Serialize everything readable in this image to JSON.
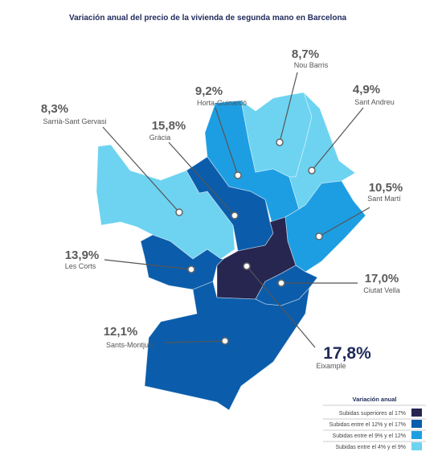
{
  "title": "Variación anual del precio de la vivienda de segunda mano en Barcelona",
  "districts": [
    {
      "name": "Nou Barris",
      "label": "8,7%",
      "color": "#6dd3f1"
    },
    {
      "name": "Horta-Guinardó",
      "label": "9,2%",
      "color": "#1e9ee2"
    },
    {
      "name": "Sant Andreu",
      "label": "4,9%",
      "color": "#6dd3f1"
    },
    {
      "name": "Sarrià-Sant Gervasi",
      "label": "8,3%",
      "color": "#6dd3f1"
    },
    {
      "name": "Gràcia",
      "label": "15,8%",
      "color": "#0b5dab"
    },
    {
      "name": "Sant Martí",
      "label": "10,5%",
      "color": "#1e9ee2"
    },
    {
      "name": "Les Corts",
      "label": "13,9%",
      "color": "#0b5dab"
    },
    {
      "name": "Ciutat Vella",
      "label": "17,0%",
      "color": "#0b5dab"
    },
    {
      "name": "Sants-Montjuïc",
      "label": "12,1%",
      "color": "#0b5dab"
    },
    {
      "name": "Eixample",
      "label": "17,8%",
      "color": "#262650"
    }
  ],
  "legend": {
    "title": "Variación anual",
    "items": [
      {
        "label": "Subidas superiores al 17%",
        "color": "#262650"
      },
      {
        "label": "Subidas entre el 12% y el 17%",
        "color": "#0b5dab"
      },
      {
        "label": "Subidas entre el 9% y el 12%",
        "color": "#1e9ee2"
      },
      {
        "label": "Subidas entre el 4% y el 9%",
        "color": "#6dd3f1"
      }
    ]
  }
}
